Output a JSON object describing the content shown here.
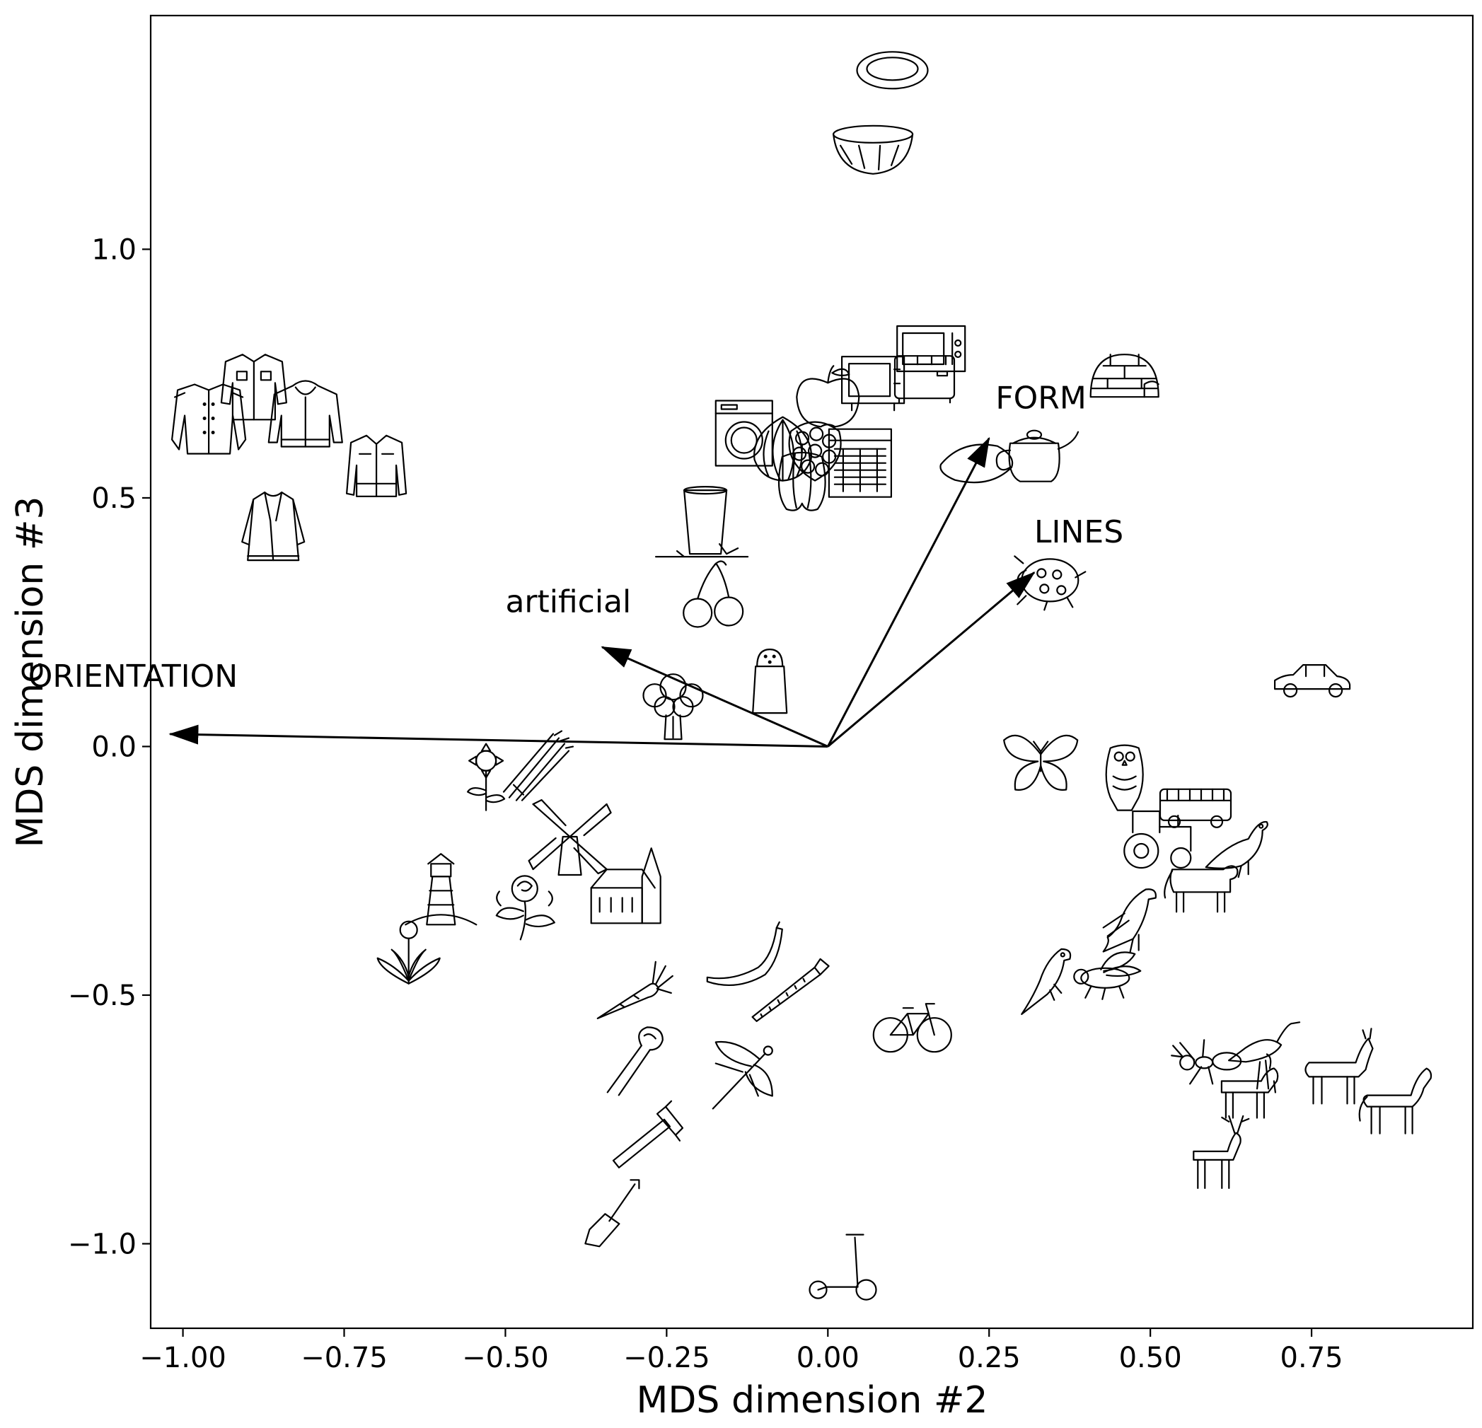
{
  "chart_data": {
    "type": "scatter",
    "xlabel": "MDS dimension #2",
    "ylabel": "MDS dimension #3",
    "xlim": [
      -1.05,
      1.0
    ],
    "ylim": [
      -1.17,
      1.47
    ],
    "xticks": [
      -1.0,
      -0.75,
      -0.5,
      -0.25,
      0.0,
      0.25,
      0.5,
      0.75
    ],
    "xtick_labels": [
      "−1.00",
      "−0.75",
      "−0.50",
      "−0.25",
      "0.00",
      "0.25",
      "0.50",
      "0.75"
    ],
    "yticks": [
      1.0,
      0.5,
      0.0,
      -0.5,
      -1.0
    ],
    "ytick_labels": [
      "1.0",
      "0.5",
      "0.0",
      "−0.5",
      "−1.0"
    ],
    "grid": false,
    "vectors": [
      {
        "label": "ORIENTATION",
        "x": -1.02,
        "y": 0.025,
        "label_x": -1.24,
        "label_y": 0.12
      },
      {
        "label": "artificial",
        "x": -0.35,
        "y": 0.2,
        "label_x": -0.5,
        "label_y": 0.27
      },
      {
        "label": "FORM",
        "x": 0.25,
        "y": 0.62,
        "label_x": 0.26,
        "label_y": 0.68
      },
      {
        "label": "LINES",
        "x": 0.32,
        "y": 0.35,
        "label_x": 0.32,
        "label_y": 0.41
      }
    ],
    "points": [
      {
        "item": "plate",
        "x": 0.1,
        "y": 1.36
      },
      {
        "item": "bowl",
        "x": 0.07,
        "y": 1.2
      },
      {
        "item": "microwave",
        "x": 0.16,
        "y": 0.8
      },
      {
        "item": "toaster",
        "x": 0.15,
        "y": 0.74
      },
      {
        "item": "television",
        "x": 0.07,
        "y": 0.73
      },
      {
        "item": "igloo",
        "x": 0.46,
        "y": 0.74
      },
      {
        "item": "apple",
        "x": 0.0,
        "y": 0.7
      },
      {
        "item": "washing machine",
        "x": -0.13,
        "y": 0.63
      },
      {
        "item": "onion",
        "x": -0.07,
        "y": 0.6
      },
      {
        "item": "raspberry",
        "x": -0.02,
        "y": 0.6
      },
      {
        "item": "dishwasher",
        "x": 0.05,
        "y": 0.57
      },
      {
        "item": "pepper",
        "x": -0.04,
        "y": 0.54
      },
      {
        "item": "lemon",
        "x": 0.23,
        "y": 0.57
      },
      {
        "item": "teapot",
        "x": 0.32,
        "y": 0.59
      },
      {
        "item": "glass",
        "x": -0.19,
        "y": 0.45
      },
      {
        "item": "ladybug",
        "x": 0.34,
        "y": 0.34
      },
      {
        "item": "cherries",
        "x": -0.18,
        "y": 0.3
      },
      {
        "item": "salt shaker",
        "x": -0.09,
        "y": 0.13
      },
      {
        "item": "broccoli",
        "x": -0.24,
        "y": 0.08
      },
      {
        "item": "car",
        "x": 0.75,
        "y": 0.13
      },
      {
        "item": "military jacket",
        "x": -0.96,
        "y": 0.66
      },
      {
        "item": "shirt",
        "x": -0.89,
        "y": 0.72
      },
      {
        "item": "hoodie",
        "x": -0.81,
        "y": 0.66
      },
      {
        "item": "denim jacket",
        "x": -0.7,
        "y": 0.56
      },
      {
        "item": "fur coat",
        "x": -0.86,
        "y": 0.44
      },
      {
        "item": "sunflower",
        "x": -0.53,
        "y": -0.06
      },
      {
        "item": "asparagus",
        "x": -0.45,
        "y": -0.04
      },
      {
        "item": "butterfly",
        "x": 0.33,
        "y": -0.03
      },
      {
        "item": "owl",
        "x": 0.46,
        "y": -0.06
      },
      {
        "item": "bus",
        "x": 0.57,
        "y": -0.12
      },
      {
        "item": "tractor",
        "x": 0.51,
        "y": -0.19
      },
      {
        "item": "pigeon",
        "x": 0.63,
        "y": -0.2
      },
      {
        "item": "cow",
        "x": 0.58,
        "y": -0.27
      },
      {
        "item": "windmill",
        "x": -0.4,
        "y": -0.19
      },
      {
        "item": "church",
        "x": -0.31,
        "y": -0.29
      },
      {
        "item": "lighthouse",
        "x": -0.6,
        "y": -0.29
      },
      {
        "item": "rose",
        "x": -0.47,
        "y": -0.32
      },
      {
        "item": "dandelion",
        "x": -0.65,
        "y": -0.42
      },
      {
        "item": "eagle",
        "x": 0.46,
        "y": -0.35
      },
      {
        "item": "parrot",
        "x": 0.34,
        "y": -0.47
      },
      {
        "item": "fly",
        "x": 0.43,
        "y": -0.46
      },
      {
        "item": "banana",
        "x": -0.13,
        "y": -0.43
      },
      {
        "item": "saw",
        "x": -0.06,
        "y": -0.49
      },
      {
        "item": "carrot",
        "x": -0.3,
        "y": -0.49
      },
      {
        "item": "bicycle",
        "x": 0.13,
        "y": -0.56
      },
      {
        "item": "pincers",
        "x": -0.3,
        "y": -0.63
      },
      {
        "item": "dragonfly",
        "x": -0.13,
        "y": -0.66
      },
      {
        "item": "ant",
        "x": 0.59,
        "y": -0.63
      },
      {
        "item": "stork",
        "x": 0.67,
        "y": -0.62
      },
      {
        "item": "donkey",
        "x": 0.79,
        "y": -0.65
      },
      {
        "item": "goat",
        "x": 0.65,
        "y": -0.69
      },
      {
        "item": "horse",
        "x": 0.88,
        "y": -0.71
      },
      {
        "item": "deer",
        "x": 0.6,
        "y": -0.82
      },
      {
        "item": "hammer",
        "x": -0.28,
        "y": -0.79
      },
      {
        "item": "shovel",
        "x": -0.33,
        "y": -0.94
      },
      {
        "item": "scooter",
        "x": 0.02,
        "y": -1.05
      }
    ]
  }
}
